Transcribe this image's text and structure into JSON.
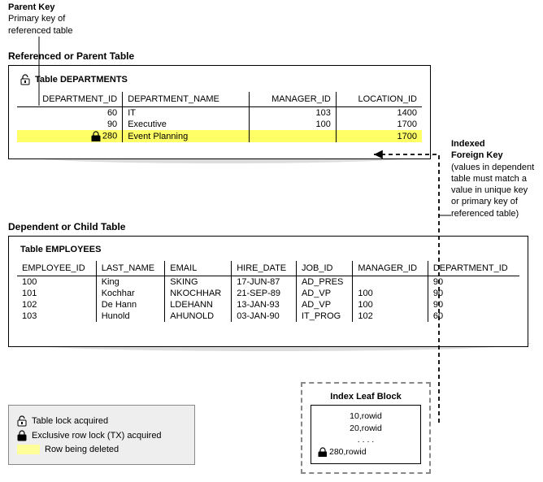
{
  "labels": {
    "parent_key_title": "Parent Key",
    "parent_key_desc1": "Primary key of",
    "parent_key_desc2": "referenced table",
    "parent_table_title": "Referenced or Parent Table",
    "child_table_title": "Dependent or Child Table",
    "departments_name": "Table DEPARTMENTS",
    "employees_name": "Table EMPLOYEES",
    "fk_title": "Indexed",
    "fk_title2": "Foreign Key",
    "fk_desc1": "(values in dependent",
    "fk_desc2": "table must match a",
    "fk_desc3": "value in unique key",
    "fk_desc4": "or primary key of",
    "fk_desc5": "referenced table)",
    "index_block_title": "Index Leaf Block",
    "legend_table_lock": "Table lock acquired",
    "legend_row_lock": "Exclusive row lock (TX) acquired",
    "legend_deleted": "Row being deleted"
  },
  "departments": {
    "columns": [
      "DEPARTMENT_ID",
      "DEPARTMENT_NAME",
      "MANAGER_ID",
      "LOCATION_ID"
    ],
    "rows": [
      {
        "id": "60",
        "name": "IT",
        "mgr": "103",
        "loc": "1400",
        "hl": false,
        "lock": false
      },
      {
        "id": "90",
        "name": "Executive",
        "mgr": "100",
        "loc": "1700",
        "hl": false,
        "lock": false
      },
      {
        "id": "280",
        "name": "Event Planning",
        "mgr": "",
        "loc": "1700",
        "hl": true,
        "lock": true
      }
    ]
  },
  "employees": {
    "columns": [
      "EMPLOYEE_ID",
      "LAST_NAME",
      "EMAIL",
      "HIRE_DATE",
      "JOB_ID",
      "MANAGER_ID",
      "DEPARTMENT_ID"
    ],
    "rows": [
      [
        "100",
        "King",
        "SKING",
        "17-JUN-87",
        "AD_PRES",
        "",
        "90"
      ],
      [
        "101",
        "Kochhar",
        "NKOCHHAR",
        "21-SEP-89",
        "AD_VP",
        "100",
        "90"
      ],
      [
        "102",
        "De Hann",
        "LDEHANN",
        "13-JAN-93",
        "AD_VP",
        "100",
        "90"
      ],
      [
        "103",
        "Hunold",
        "AHUNOLD",
        "03-JAN-90",
        "IT_PROG",
        "102",
        "60"
      ]
    ]
  },
  "index_block": {
    "lines": [
      "10,rowid",
      "20,rowid",
      ". . . .",
      "280,rowid"
    ]
  },
  "style": {
    "highlight_color": "#ffff66",
    "border_color": "#000000",
    "dashed_color": "#888888",
    "legend_bg": "#eeeeee"
  }
}
